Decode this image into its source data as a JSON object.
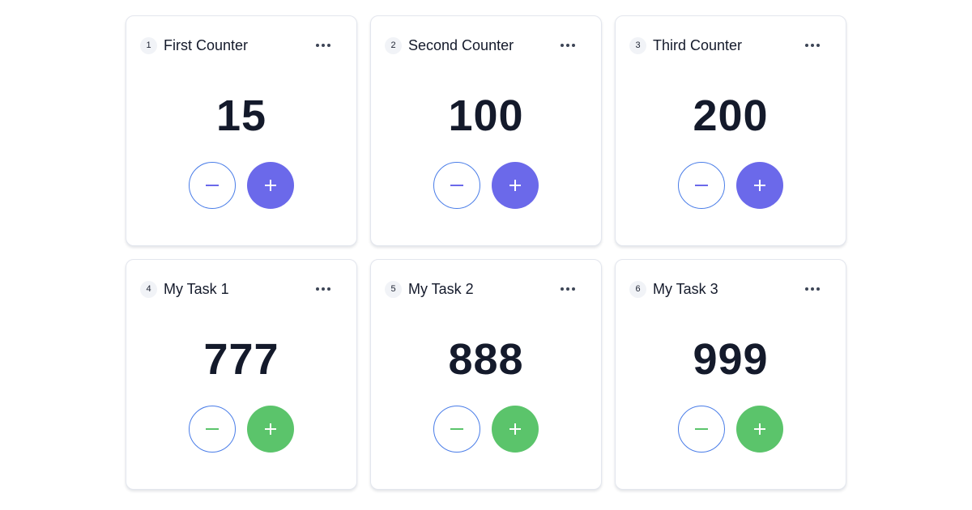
{
  "colors": {
    "purple": "#6b69ea",
    "green": "#5bc46b",
    "minus_border": "#4a7de8"
  },
  "menu_icon": "more-horizontal-icon",
  "cards": [
    {
      "index": "1",
      "title": "First Counter",
      "value": "15",
      "accent": "purple"
    },
    {
      "index": "2",
      "title": "Second Counter",
      "value": "100",
      "accent": "purple"
    },
    {
      "index": "3",
      "title": "Third Counter",
      "value": "200",
      "accent": "purple"
    },
    {
      "index": "4",
      "title": "My Task 1",
      "value": "777",
      "accent": "green"
    },
    {
      "index": "5",
      "title": "My Task 2",
      "value": "888",
      "accent": "green"
    },
    {
      "index": "6",
      "title": "My Task 3",
      "value": "999",
      "accent": "green"
    }
  ]
}
